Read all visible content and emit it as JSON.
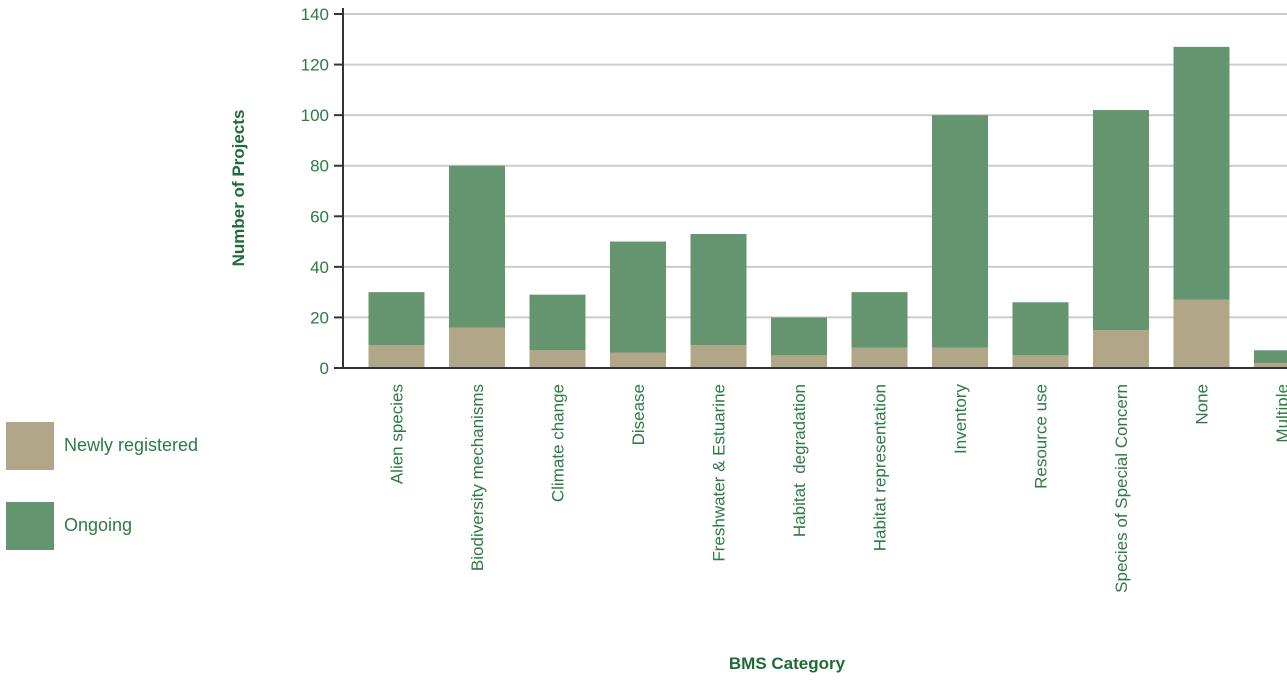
{
  "chart_data": {
    "type": "bar",
    "stacked": true,
    "title": "",
    "xlabel": "BMS Category",
    "ylabel": "Number of Projects",
    "ylim": [
      0,
      140
    ],
    "yticks": [
      0,
      20,
      40,
      60,
      80,
      100,
      120,
      140
    ],
    "grid": true,
    "legend_position": "left",
    "categories": [
      "Alien species",
      "Biodiversity mechanisms",
      "Climate change",
      "Disease",
      "Freshwater & Estuarine",
      "Habitat  degradation",
      "Habitat representation",
      "Inventory",
      "Resource use",
      "Species of Special Concern",
      "None",
      "Multiple"
    ],
    "series": [
      {
        "name": "Newly registered",
        "color": "#b2a689",
        "values": [
          9,
          16,
          7,
          6,
          9,
          5,
          8,
          8,
          5,
          15,
          27,
          2
        ]
      },
      {
        "name": "Ongoing",
        "color": "#64956e",
        "values": [
          21,
          64,
          22,
          44,
          44,
          15,
          22,
          92,
          21,
          87,
          100,
          5
        ]
      }
    ],
    "colors": {
      "text": "#2e7a44",
      "title": "#1f6b38",
      "grid": "#cccccc",
      "axis": "#333333"
    }
  }
}
